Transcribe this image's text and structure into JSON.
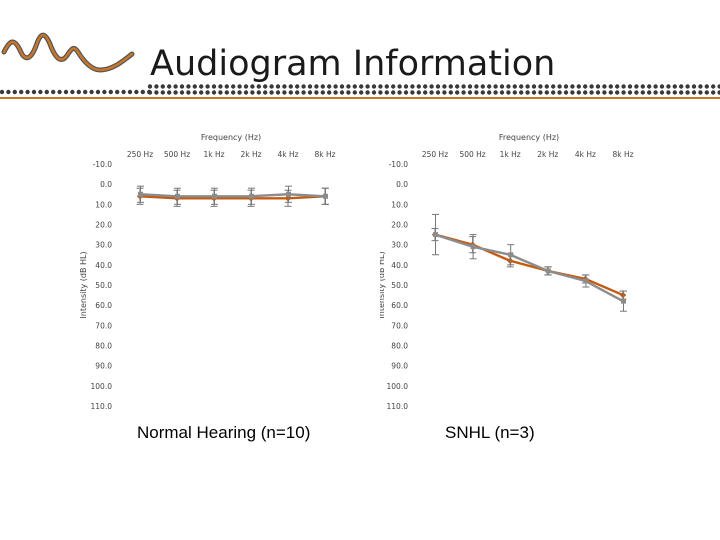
{
  "slide": {
    "title": "Audiogram Information",
    "accent_color": "#c8772a",
    "dot_color": "#3a3a3a",
    "logo_icon": "wave-logo-icon"
  },
  "chart_data": [
    {
      "type": "line",
      "title": "",
      "caption": "Normal Hearing (n=10)",
      "xlabel": "Frequency (Hz)",
      "ylabel": "Intensity (dB HL)",
      "categories": [
        "250 Hz",
        "500 Hz",
        "1k Hz",
        "2k Hz",
        "4k Hz",
        "8k Hz"
      ],
      "ylim": [
        -10,
        110
      ],
      "y_ticks": [
        "-10.0",
        "0.0",
        "10.0",
        "20.0",
        "30.0",
        "40.0",
        "50.0",
        "60.0",
        "70.0",
        "80.0",
        "90.0",
        "100.0",
        "110.0"
      ],
      "y_inverted": true,
      "grid": false,
      "series": [
        {
          "color": "#c55a11",
          "values": [
            6,
            7,
            7,
            7,
            7,
            6
          ],
          "err": [
            4,
            4,
            4,
            4,
            4,
            4
          ]
        },
        {
          "color": "#8c8c8c",
          "values": [
            5,
            6,
            6,
            6,
            5,
            6
          ],
          "err": [
            4,
            4,
            4,
            4,
            4,
            4
          ]
        }
      ]
    },
    {
      "type": "line",
      "title": "",
      "caption": "SNHL (n=3)",
      "xlabel": "Frequency (Hz)",
      "ylabel": "Intensity (dB HL)",
      "categories": [
        "250 Hz",
        "500 Hz",
        "1k Hz",
        "2k Hz",
        "4k Hz",
        "8k Hz"
      ],
      "ylim": [
        -10,
        110
      ],
      "y_ticks": [
        "-10.0",
        "0.0",
        "10.0",
        "20.0",
        "30.0",
        "40.0",
        "50.0",
        "60.0",
        "70.0",
        "80.0",
        "90.0",
        "100.0",
        "110.0"
      ],
      "y_inverted": true,
      "grid": false,
      "series": [
        {
          "color": "#c55a11",
          "values": [
            25,
            30,
            38,
            43,
            47,
            55
          ],
          "err": [
            3,
            4,
            3,
            2,
            2,
            2
          ]
        },
        {
          "color": "#8c8c8c",
          "values": [
            25,
            31,
            35,
            43,
            48,
            58
          ],
          "err": [
            10,
            6,
            5,
            2,
            3,
            5
          ]
        }
      ]
    }
  ]
}
